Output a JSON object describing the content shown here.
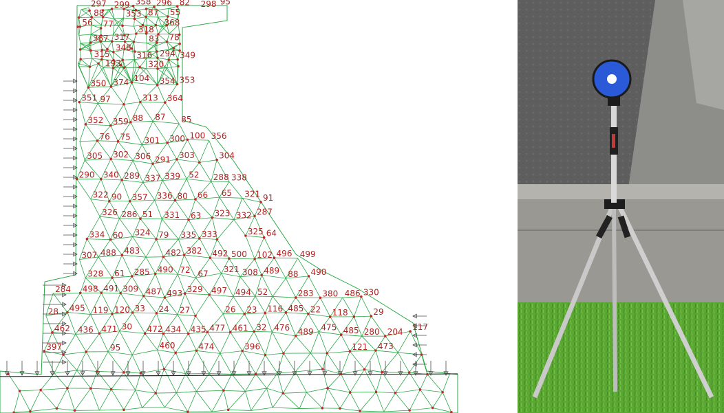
{
  "mesh": {
    "edge_color": "#27a844",
    "node_color": "#c0282a",
    "label_color": "#b22222",
    "support_color": "#4a4a4a",
    "labels": [
      "95",
      "358",
      "82",
      "296",
      "297",
      "298",
      "299",
      "55",
      "87",
      "88",
      "353",
      "56",
      "368",
      "77",
      "318",
      "317",
      "78",
      "367",
      "83",
      "348",
      "294",
      "315",
      "316",
      "349",
      "193",
      "320",
      "104",
      "353",
      "354",
      "374",
      "350",
      "313",
      "351",
      "364",
      "97",
      "87",
      "88",
      "85",
      "352",
      "359",
      "100",
      "356",
      "76",
      "75",
      "300",
      "301",
      "302",
      "303",
      "304",
      "305",
      "306",
      "291",
      "52",
      "290",
      "340",
      "289",
      "339",
      "288",
      "338",
      "337",
      "65",
      "321",
      "322",
      "66",
      "336",
      "80",
      "90",
      "357",
      "91",
      "287",
      "326",
      "323",
      "286",
      "51",
      "331",
      "332",
      "63",
      "325",
      "324",
      "64",
      "333",
      "334",
      "335",
      "79",
      "60",
      "382",
      "483",
      "482",
      "488",
      "492",
      "496",
      "499",
      "500",
      "102",
      "307",
      "321",
      "490",
      "72",
      "489",
      "490",
      "285",
      "308",
      "61",
      "67",
      "328",
      "88",
      "491",
      "498",
      "309",
      "284",
      "329",
      "497",
      "487",
      "52",
      "330",
      "494",
      "493",
      "486",
      "283",
      "380",
      "495",
      "485",
      "33",
      "116",
      "24",
      "26",
      "22",
      "120",
      "23",
      "119",
      "27",
      "28",
      "29",
      "118",
      "30",
      "117",
      "32",
      "475",
      "476",
      "477",
      "461",
      "462",
      "471",
      "472",
      "434",
      "435",
      "436",
      "485",
      "489",
      "204",
      "280",
      "460",
      "473",
      "474",
      "396",
      "397",
      "121",
      "95"
    ]
  },
  "photo": {
    "sky_color": "#5a5a5a",
    "wall_color": "#7d7d7d",
    "grass_color": "#5aa832",
    "target_color": "#2a5ad6",
    "tripod_color": "#c8c8c8"
  }
}
